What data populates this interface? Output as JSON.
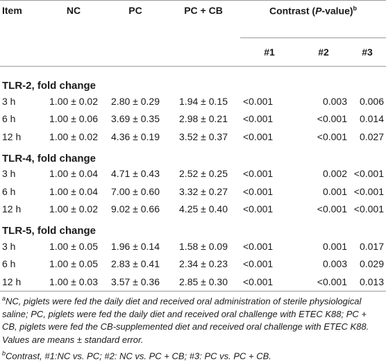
{
  "header": {
    "item": "Item",
    "nc": "NC",
    "pc": "PC",
    "pccb": "PC + CB",
    "contrast_prefix": "Contrast (",
    "contrast_p": "P",
    "contrast_suffix": "-value)",
    "contrast_sup": "b",
    "c1": "#1",
    "c2": "#2",
    "c3": "#3"
  },
  "sections": [
    {
      "title": "TLR-2, fold change",
      "rows": [
        {
          "time": "3 h",
          "nc": "1.00 ± 0.02",
          "pc": "2.80 ± 0.29",
          "pccb": "1.94 ± 0.15",
          "p1": "<0.001",
          "p2": "0.003",
          "p3": "0.006"
        },
        {
          "time": "6 h",
          "nc": "1.00 ± 0.06",
          "pc": "3.69 ± 0.35",
          "pccb": "2.98 ± 0.21",
          "p1": "<0.001",
          "p2": "<0.001",
          "p3": "0.014"
        },
        {
          "time": "12 h",
          "nc": "1.00 ± 0.02",
          "pc": "4.36 ± 0.19",
          "pccb": "3.52 ± 0.37",
          "p1": "<0.001",
          "p2": "<0.001",
          "p3": "0.027"
        }
      ]
    },
    {
      "title": "TLR-4, fold change",
      "rows": [
        {
          "time": "3 h",
          "nc": "1.00 ± 0.04",
          "pc": "4.71 ± 0.43",
          "pccb": "2.52 ± 0.25",
          "p1": "<0.001",
          "p2": "0.002",
          "p3": "<0.001"
        },
        {
          "time": "6 h",
          "nc": "1.00 ± 0.04",
          "pc": "7.00 ± 0.60",
          "pccb": "3.32 ± 0.27",
          "p1": "<0.001",
          "p2": "0.001",
          "p3": "<0.001"
        },
        {
          "time": "12 h",
          "nc": "1.00 ± 0.02",
          "pc": "9.02 ± 0.66",
          "pccb": "4.25 ± 0.40",
          "p1": "<0.001",
          "p2": "<0.001",
          "p3": "<0.001"
        }
      ]
    },
    {
      "title": "TLR-5, fold change",
      "rows": [
        {
          "time": "3 h",
          "nc": "1.00 ± 0.05",
          "pc": "1.96 ± 0.14",
          "pccb": "1.58 ± 0.09",
          "p1": "<0.001",
          "p2": "0.001",
          "p3": "0.017"
        },
        {
          "time": "6 h",
          "nc": "1.00 ± 0.05",
          "pc": "2.83 ± 0.41",
          "pccb": "2.34 ± 0.23",
          "p1": "<0.001",
          "p2": "0.003",
          "p3": "0.029"
        },
        {
          "time": "12 h",
          "nc": "1.00 ± 0.03",
          "pc": "3.57 ± 0.36",
          "pccb": "2.85 ± 0.30",
          "p1": "<0.001",
          "p2": "<0.001",
          "p3": "0.013"
        }
      ]
    }
  ],
  "footnotes": {
    "a_sup": "a",
    "a_text": "NC, piglets were fed the daily diet and received oral administration of sterile physiological saline; PC, piglets were fed the daily diet and received oral challenge with ETEC K88; PC + CB, piglets were fed the CB-supplemented diet and received oral challenge with ETEC K88. Values are means ± standard error.",
    "b_sup": "b",
    "b_text": "Contrast, #1:NC vs. PC; #2: NC vs. PC + CB; #3: PC vs. PC + CB."
  }
}
